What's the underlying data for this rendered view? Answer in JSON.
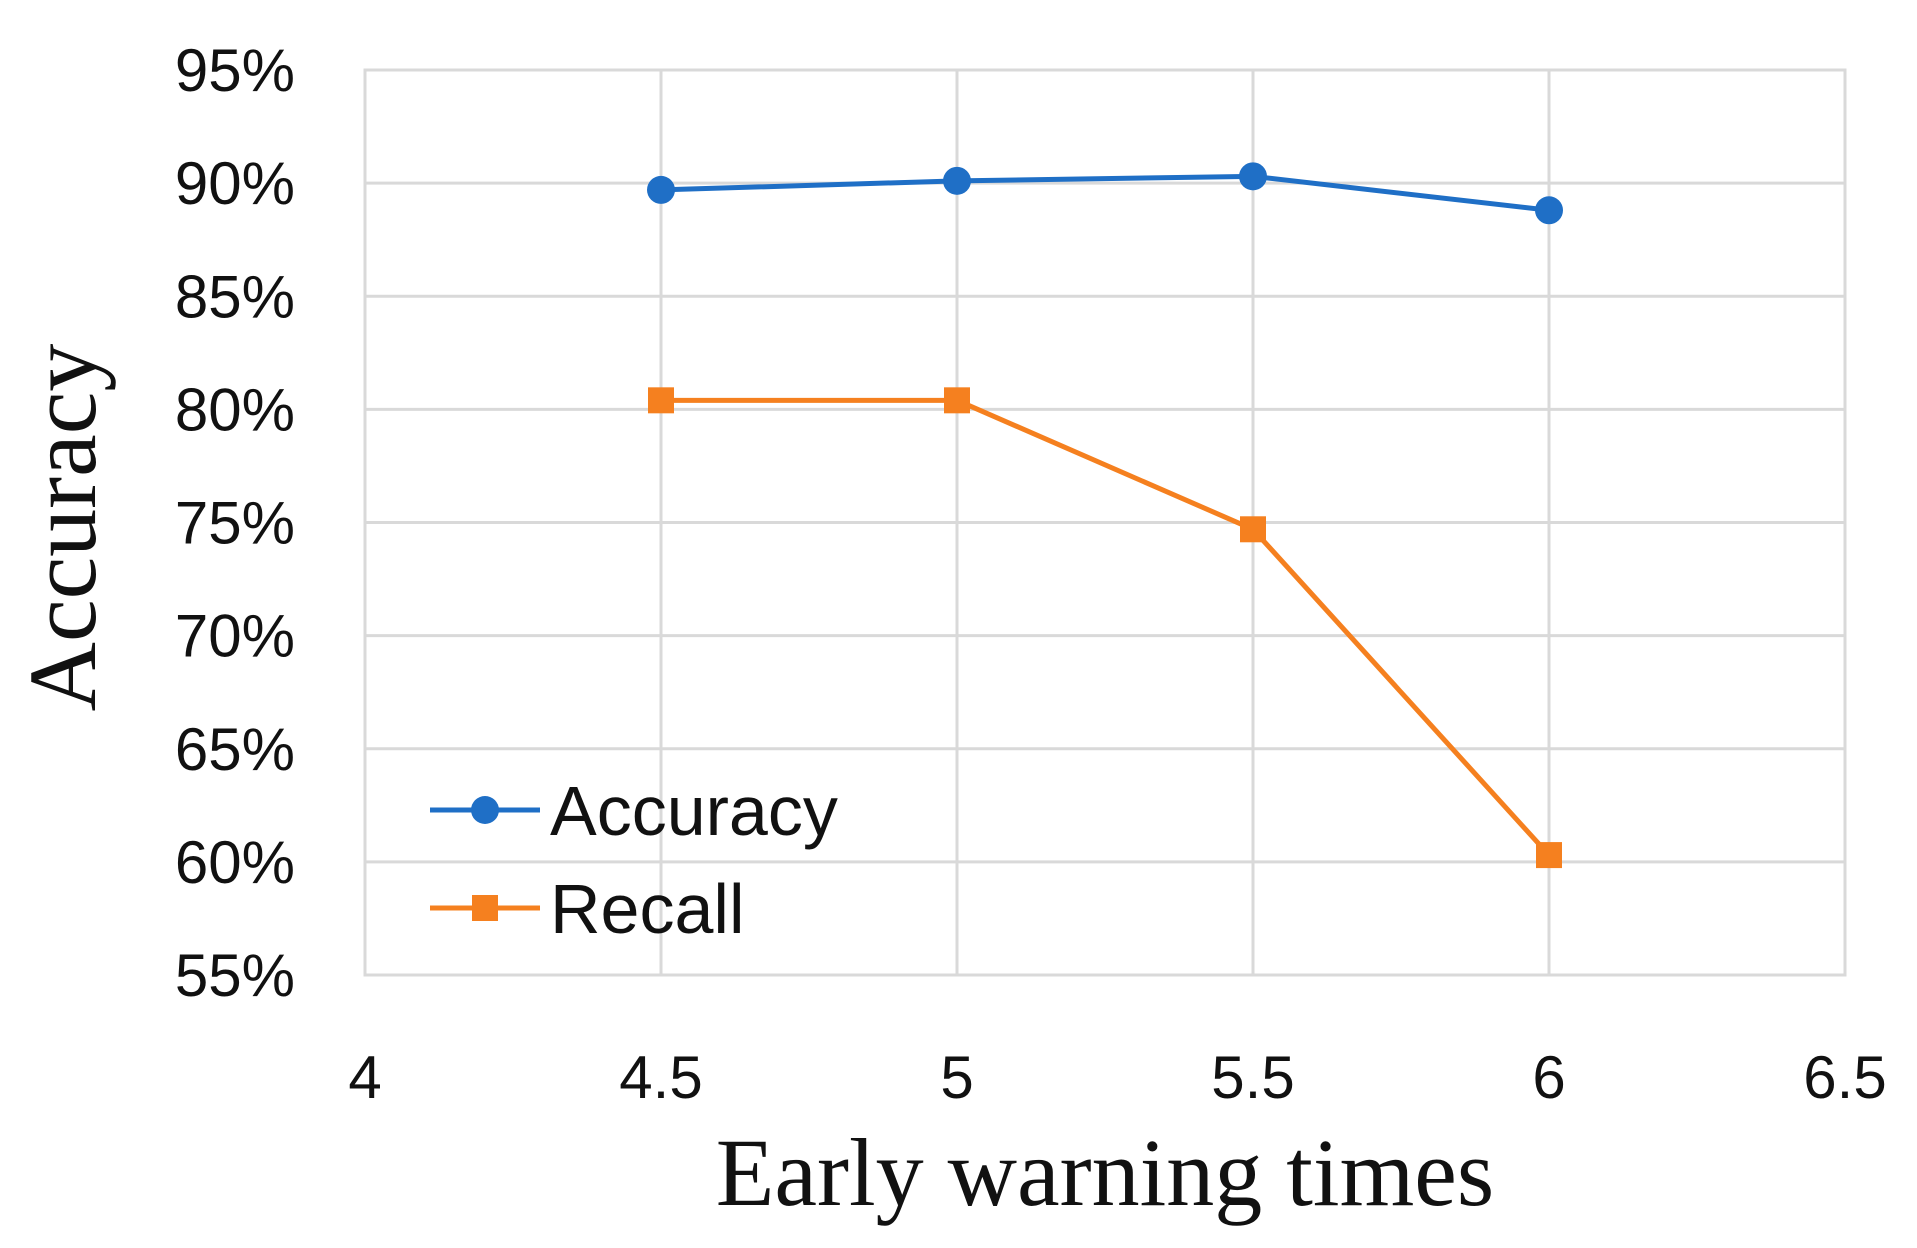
{
  "chart_data": {
    "type": "line",
    "title": "",
    "xlabel": "Early warning times",
    "ylabel": "Accuracy",
    "x": [
      4.5,
      5,
      5.5,
      6
    ],
    "xlim": [
      4,
      6.5
    ],
    "ylim": [
      0.55,
      0.95
    ],
    "x_ticks": [
      4,
      4.5,
      5,
      5.5,
      6,
      6.5
    ],
    "x_tick_labels": [
      "4",
      "4.5",
      "5",
      "5.5",
      "6",
      "6.5"
    ],
    "y_ticks": [
      0.55,
      0.6,
      0.65,
      0.7,
      0.75,
      0.8,
      0.85,
      0.9,
      0.95
    ],
    "y_tick_labels": [
      "55%",
      "60%",
      "65%",
      "70%",
      "75%",
      "80%",
      "85%",
      "90%",
      "95%"
    ],
    "grid": true,
    "legend_position": "bottom-left",
    "series": [
      {
        "name": "Accuracy",
        "values": [
          0.897,
          0.901,
          0.903,
          0.888
        ],
        "color": "#1f6fc6",
        "marker": "circle"
      },
      {
        "name": "Recall",
        "values": [
          0.804,
          0.804,
          0.747,
          0.603
        ],
        "color": "#f5801f",
        "marker": "square"
      }
    ]
  }
}
